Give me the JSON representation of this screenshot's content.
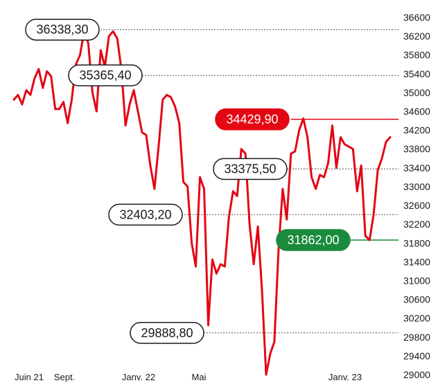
{
  "chart_data": {
    "type": "line",
    "colors": {
      "line": "#e30613",
      "high": "#e30613",
      "low": "#1a8a3c",
      "grid": "#555555"
    },
    "y_ticks": [
      "36600",
      "36200",
      "35800",
      "35400",
      "35000",
      "34600",
      "34200",
      "33800",
      "33400",
      "33000",
      "32600",
      "32200",
      "31800",
      "31400",
      "31000",
      "30600",
      "30200",
      "29800",
      "29400",
      "29000"
    ],
    "ylim": [
      29000,
      36600
    ],
    "x_ticks": [
      "Juin 21",
      "Sept.",
      "Janv. 22",
      "Mai",
      "Janv. 23"
    ],
    "annotations": [
      {
        "label": "36338,30",
        "value": 36338.3,
        "style": "outline"
      },
      {
        "label": "35365,40",
        "value": 35365.4,
        "style": "outline"
      },
      {
        "label": "34429,90",
        "value": 34429.9,
        "style": "high"
      },
      {
        "label": "33375,50",
        "value": 33375.5,
        "style": "outline"
      },
      {
        "label": "32403,20",
        "value": 32403.2,
        "style": "outline"
      },
      {
        "label": "31862,00",
        "value": 31862.0,
        "style": "low"
      },
      {
        "label": "29888,80",
        "value": 29888.8,
        "style": "outline"
      }
    ],
    "series": [
      {
        "values": [
          34850,
          34950,
          34750,
          35050,
          34950,
          35300,
          35500,
          35100,
          35450,
          35350,
          34650,
          34650,
          34800,
          34350,
          34850,
          35600,
          35800,
          36300,
          36050,
          35000,
          34600,
          35900,
          35550,
          36200,
          36300,
          36150,
          35500,
          34300,
          34750,
          35050,
          34600,
          34150,
          34100,
          33450,
          32950,
          33850,
          34850,
          34950,
          34900,
          34700,
          34350,
          33100,
          33000,
          31800,
          31300,
          33200,
          32950,
          30050,
          31450,
          31150,
          31350,
          31300,
          32350,
          32900,
          32800,
          33800,
          33700,
          32200,
          31350,
          32150,
          30800,
          29000,
          29450,
          29700,
          31650,
          32950,
          32300,
          33700,
          33750,
          34200,
          34450,
          34050,
          33200,
          32950,
          33250,
          33200,
          33500,
          34300,
          33400,
          34050,
          33900,
          33850,
          33800,
          32900,
          33450,
          31950,
          31862,
          32400,
          33350,
          33600,
          33950,
          34050
        ]
      }
    ]
  }
}
